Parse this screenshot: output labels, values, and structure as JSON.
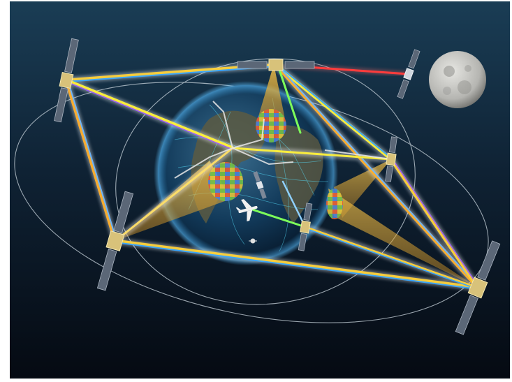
{
  "image": {
    "subject": "illustration",
    "colors": {
      "space_top": "#1a3d55",
      "space_bottom": "#050a12",
      "frame": "#ffffff",
      "earth_ocean": "#123a5a",
      "earth_land": "#5c5a42",
      "beam_glow": "#d9a436",
      "red_link": "#ff2a2a",
      "green_link": "#7dff5a",
      "moon": "#c9c9c6"
    },
    "icons": {
      "satellite": "satellite-icon",
      "moon": "moon-icon",
      "earth": "earth-icon",
      "airplane": "airplane-icon"
    }
  }
}
